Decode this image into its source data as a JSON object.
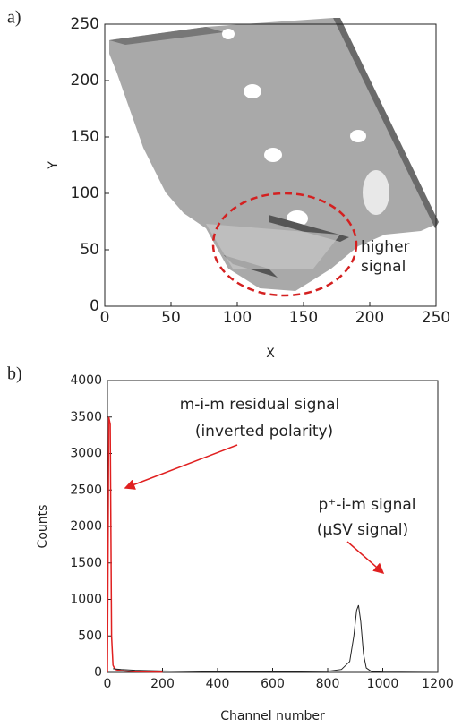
{
  "chart_data": [
    {
      "type": "map",
      "panel": "a)",
      "xlabel": "X",
      "ylabel": "Y",
      "xlim": [
        0,
        250
      ],
      "ylim": [
        0,
        250
      ],
      "xticks": [
        0,
        50,
        100,
        150,
        200,
        250
      ],
      "yticks": [
        0,
        50,
        100,
        150,
        200,
        250
      ],
      "annotation": [
        "higher",
        "signal"
      ]
    },
    {
      "type": "line",
      "panel": "b)",
      "xlabel": "Channel number",
      "ylabel": "Counts",
      "xlim": [
        0,
        1200
      ],
      "ylim": [
        0,
        4000
      ],
      "xticks": [
        0,
        200,
        400,
        600,
        800,
        1000,
        1200
      ],
      "yticks": [
        0,
        500,
        1000,
        1500,
        2000,
        2500,
        3000,
        3500,
        4000
      ],
      "annotations": [
        "m-i-m residual signal",
        "(inverted polarity)",
        "p⁺-i-m signal",
        "(µSV signal)"
      ],
      "series": [
        {
          "color": "#e02020",
          "x": [
            0,
            5,
            10,
            15,
            20,
            25,
            30,
            40,
            60,
            100,
            200
          ],
          "values": [
            0,
            3500,
            3400,
            500,
            100,
            60,
            40,
            30,
            20,
            10,
            5
          ]
        },
        {
          "color": "#222222",
          "x": [
            20,
            50,
            100,
            200,
            400,
            600,
            800,
            850,
            880,
            895,
            905,
            912,
            920,
            930,
            940,
            960,
            1000,
            1200
          ],
          "values": [
            50,
            40,
            30,
            20,
            10,
            8,
            15,
            40,
            150,
            500,
            850,
            920,
            700,
            250,
            60,
            10,
            5,
            0
          ]
        }
      ]
    }
  ]
}
